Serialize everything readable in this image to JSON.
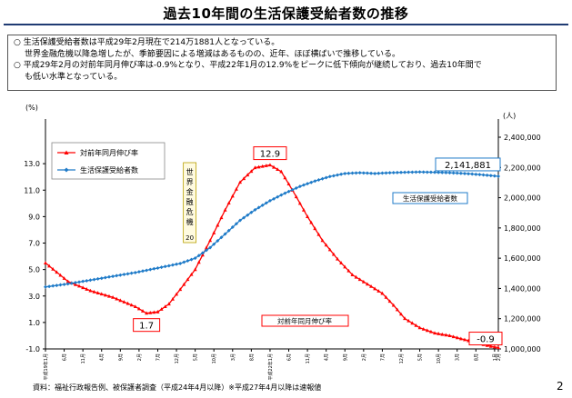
{
  "header": {
    "title": "過去10年間の生活保護受給者数の推移"
  },
  "summary": {
    "line1": "○ 生活保護受給者数は平成29年2月現在で214万1881人となっている。",
    "line2": "世界金融危機以降急増したが、季節要因による増減はあるものの、近年、ほぼ横ばいで推移している。",
    "line3": "○ 平成29年2月の対前年同月伸び率は-0.9%となり、平成22年1月の12.9%をピークに低下傾向が継続しており、過去10年間で",
    "line4": "も低い水準となっている。"
  },
  "footer": {
    "source": "資料：福祉行政報告例、被保護者調査（平成24年4月以降）※平成27年4月以降は速報値",
    "page": "2"
  },
  "colors": {
    "growth": "#ff0000",
    "recipients": "#1f7bc8",
    "frame": "#1f3b73"
  },
  "chart_data": {
    "type": "line",
    "left_axis": {
      "unit": "(%)",
      "ticks": [
        "13.0",
        "11.0",
        "9.0",
        "7.0",
        "5.0",
        "3.0",
        "1.0",
        "-1.0"
      ],
      "range": [
        -1,
        15
      ]
    },
    "right_axis": {
      "unit": "(人)",
      "ticks": [
        "2,400,000",
        "2,200,000",
        "2,000,000",
        "1,800,000",
        "1,600,000",
        "1,400,000",
        "1,200,000",
        "1,000,000"
      ],
      "range": [
        1000000,
        2400000
      ]
    },
    "x_range": [
      0,
      120
    ],
    "x_ticks": [
      {
        "i": 0,
        "label": "平成19年1月"
      },
      {
        "i": 5,
        "label": "6月"
      },
      {
        "i": 10,
        "label": "11月"
      },
      {
        "i": 15,
        "label": "4月"
      },
      {
        "i": 20,
        "label": "9月"
      },
      {
        "i": 25,
        "label": "2月"
      },
      {
        "i": 30,
        "label": "7月"
      },
      {
        "i": 35,
        "label": "12月"
      },
      {
        "i": 40,
        "label": "5月"
      },
      {
        "i": 45,
        "label": "10月"
      },
      {
        "i": 50,
        "label": "3月"
      },
      {
        "i": 55,
        "label": "8月"
      },
      {
        "i": 60,
        "label": "平成22年1月"
      },
      {
        "i": 65,
        "label": "6月"
      },
      {
        "i": 70,
        "label": "11月"
      },
      {
        "i": 75,
        "label": "4月"
      },
      {
        "i": 80,
        "label": "9月"
      },
      {
        "i": 85,
        "label": "2月"
      },
      {
        "i": 90,
        "label": "7月"
      },
      {
        "i": 95,
        "label": "12月"
      },
      {
        "i": 100,
        "label": "5月"
      },
      {
        "i": 105,
        "label": "10月"
      },
      {
        "i": 110,
        "label": "3月"
      },
      {
        "i": 115,
        "label": "8月"
      },
      {
        "i": 120,
        "label": "1月"
      },
      {
        "i": 121,
        "label": "2月"
      }
    ],
    "series": [
      {
        "name": "対前年同月伸び率",
        "axis": "left",
        "marker": "triangle",
        "points": [
          [
            0,
            5.5
          ],
          [
            6,
            4.1
          ],
          [
            12,
            3.4
          ],
          [
            18,
            2.9
          ],
          [
            24,
            2.2
          ],
          [
            27,
            1.7
          ],
          [
            30,
            1.8
          ],
          [
            33,
            2.4
          ],
          [
            36,
            3.5
          ],
          [
            40,
            5.0
          ],
          [
            44,
            7.2
          ],
          [
            48,
            9.5
          ],
          [
            52,
            11.6
          ],
          [
            56,
            12.7
          ],
          [
            60,
            12.9
          ],
          [
            63,
            12.4
          ],
          [
            66,
            11.0
          ],
          [
            70,
            9.0
          ],
          [
            74,
            7.2
          ],
          [
            78,
            5.8
          ],
          [
            82,
            4.6
          ],
          [
            86,
            3.9
          ],
          [
            90,
            3.2
          ],
          [
            93,
            2.3
          ],
          [
            96,
            1.3
          ],
          [
            100,
            0.6
          ],
          [
            104,
            0.2
          ],
          [
            108,
            0.0
          ],
          [
            112,
            -0.3
          ],
          [
            116,
            -0.6
          ],
          [
            119,
            -0.8
          ],
          [
            121,
            -0.9
          ]
        ],
        "labels": [
          {
            "i": 60,
            "text": "12.9"
          },
          {
            "i": 27,
            "text": "1.7"
          },
          {
            "i": 121,
            "text": "-0.9"
          }
        ],
        "annotation": "対前年同月伸び率"
      },
      {
        "name": "生活保護受給者数",
        "axis": "right",
        "marker": "diamond",
        "points": [
          [
            0,
            1410000
          ],
          [
            6,
            1430000
          ],
          [
            12,
            1455000
          ],
          [
            18,
            1480000
          ],
          [
            24,
            1505000
          ],
          [
            30,
            1535000
          ],
          [
            36,
            1565000
          ],
          [
            40,
            1600000
          ],
          [
            44,
            1670000
          ],
          [
            48,
            1760000
          ],
          [
            52,
            1850000
          ],
          [
            56,
            1920000
          ],
          [
            60,
            1980000
          ],
          [
            64,
            2030000
          ],
          [
            68,
            2075000
          ],
          [
            72,
            2110000
          ],
          [
            76,
            2140000
          ],
          [
            80,
            2160000
          ],
          [
            84,
            2165000
          ],
          [
            88,
            2160000
          ],
          [
            92,
            2165000
          ],
          [
            96,
            2168000
          ],
          [
            100,
            2170000
          ],
          [
            104,
            2168000
          ],
          [
            108,
            2165000
          ],
          [
            112,
            2160000
          ],
          [
            116,
            2153000
          ],
          [
            121,
            2141881
          ]
        ],
        "labels": [
          {
            "i": 121,
            "text": "2,141,881"
          }
        ],
        "annotation": "生活保護受給者数"
      }
    ],
    "event_annotation": {
      "text": "世界金融危機",
      "sub": "20",
      "at": 40
    },
    "legend": "top-left",
    "grid": false
  }
}
